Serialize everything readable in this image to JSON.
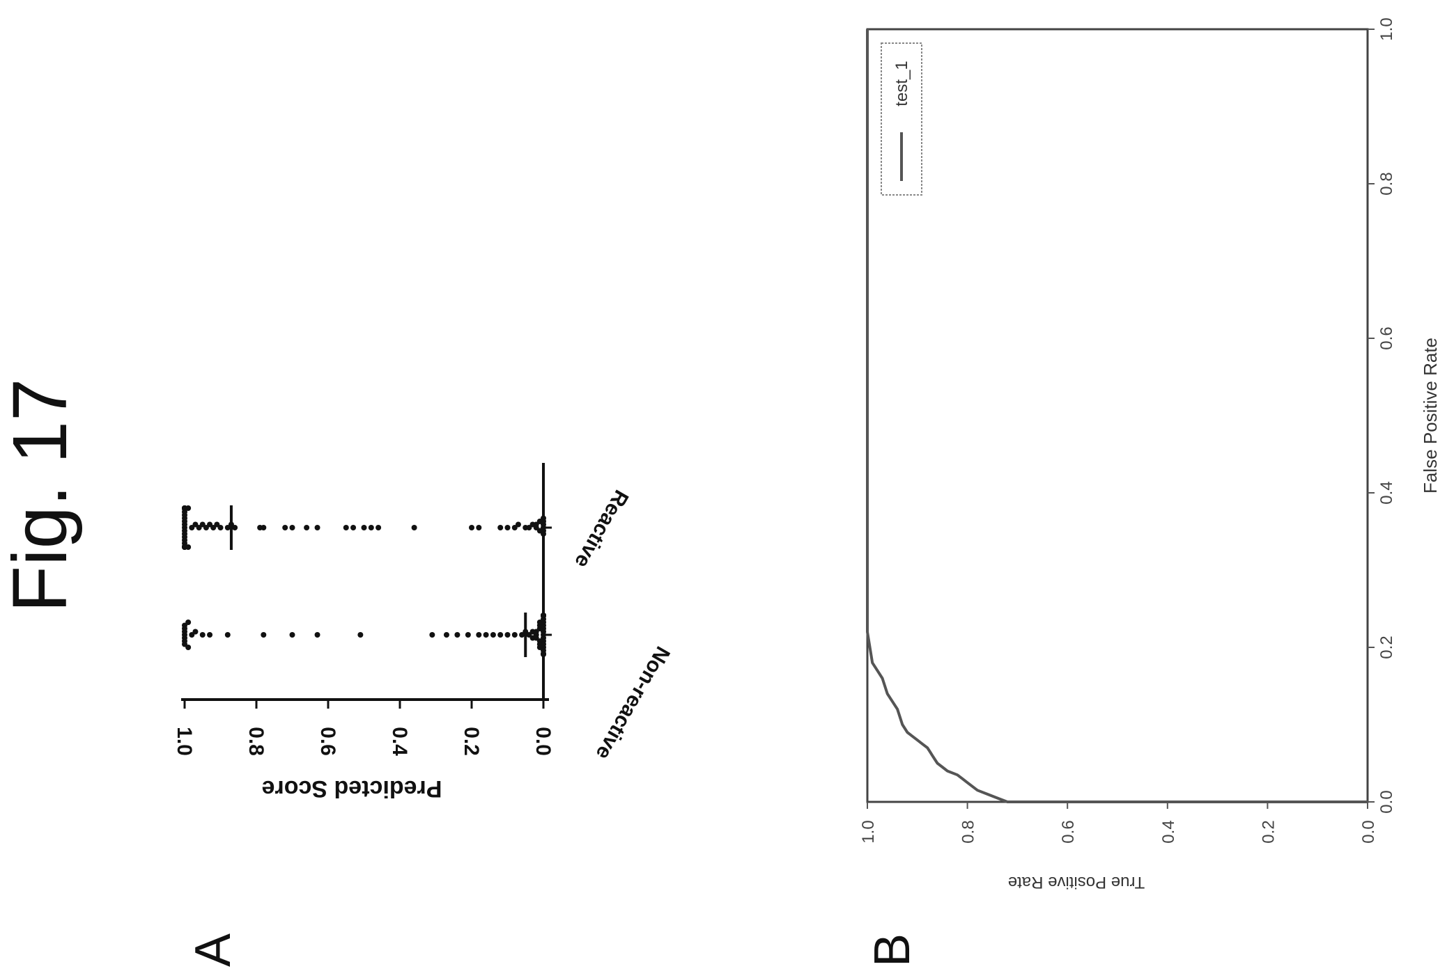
{
  "figure": {
    "title": "Fig. 17",
    "orientation": "rotated 90° counter-clockwise"
  },
  "chart_data": [
    {
      "panel": "A",
      "type": "scatter",
      "title": "",
      "xlabel": "",
      "ylabel": "Predicted Score",
      "ylim": [
        0.0,
        1.0
      ],
      "yticks": [
        "0.0",
        "0.2",
        "0.4",
        "0.6",
        "0.8",
        "1.0"
      ],
      "categories": [
        "Non-reactive",
        "Reactive"
      ],
      "series": [
        {
          "category": "Non-reactive",
          "values": [
            1.0,
            1.0,
            1.0,
            1.0,
            1.0,
            1.0,
            1.0,
            0.99,
            0.99,
            0.98,
            0.97,
            0.95,
            0.93,
            0.88,
            0.78,
            0.7,
            0.63,
            0.51,
            0.31,
            0.27,
            0.24,
            0.21,
            0.18,
            0.16,
            0.14,
            0.12,
            0.1,
            0.08,
            0.06,
            0.05,
            0.04,
            0.03,
            0.03,
            0.02,
            0.02,
            0.02,
            0.01,
            0.01,
            0.01,
            0.01,
            0.01,
            0.01,
            0.0,
            0.0,
            0.0,
            0.0,
            0.0,
            0.0,
            0.0,
            0.0,
            0.0,
            0.0,
            0.0,
            0.0,
            0.0,
            0.0,
            0.0,
            0.0,
            0.0,
            0.0
          ]
        },
        {
          "category": "Reactive",
          "values": [
            1.0,
            1.0,
            1.0,
            1.0,
            1.0,
            1.0,
            1.0,
            1.0,
            1.0,
            1.0,
            1.0,
            1.0,
            1.0,
            1.0,
            1.0,
            1.0,
            1.0,
            1.0,
            1.0,
            1.0,
            0.99,
            0.99,
            0.98,
            0.97,
            0.96,
            0.95,
            0.94,
            0.93,
            0.92,
            0.91,
            0.9,
            0.88,
            0.87,
            0.86,
            0.79,
            0.78,
            0.72,
            0.7,
            0.66,
            0.63,
            0.55,
            0.53,
            0.5,
            0.48,
            0.46,
            0.36,
            0.2,
            0.18,
            0.12,
            0.1,
            0.08,
            0.07,
            0.05,
            0.04,
            0.03,
            0.02,
            0.02,
            0.01,
            0.01,
            0.0,
            0.0,
            0.0,
            0.0,
            0.0,
            0.0
          ]
        }
      ]
    },
    {
      "panel": "B",
      "type": "line",
      "title": "",
      "xlabel": "False Positive Rate",
      "ylabel": "True Positive Rate",
      "xlim": [
        0.0,
        1.0
      ],
      "ylim": [
        0.0,
        1.0
      ],
      "xticks": [
        "0.0",
        "0.2",
        "0.4",
        "0.6",
        "0.8",
        "1.0"
      ],
      "yticks": [
        "0.0",
        "0.2",
        "0.4",
        "0.6",
        "0.8",
        "1.0"
      ],
      "legend_position": "top-right",
      "series": [
        {
          "name": "test_1",
          "x": [
            0.0,
            0.0,
            0.005,
            0.01,
            0.015,
            0.02,
            0.025,
            0.03,
            0.035,
            0.04,
            0.045,
            0.05,
            0.055,
            0.06,
            0.065,
            0.07,
            0.075,
            0.08,
            0.085,
            0.09,
            0.1,
            0.11,
            0.12,
            0.13,
            0.14,
            0.15,
            0.16,
            0.17,
            0.18,
            0.2,
            0.22,
            0.25,
            0.3,
            0.4,
            0.5,
            0.6,
            0.7,
            0.8,
            0.9,
            1.0
          ],
          "y": [
            0.0,
            0.72,
            0.74,
            0.76,
            0.78,
            0.79,
            0.8,
            0.81,
            0.82,
            0.84,
            0.85,
            0.86,
            0.865,
            0.87,
            0.875,
            0.88,
            0.89,
            0.9,
            0.91,
            0.92,
            0.93,
            0.935,
            0.94,
            0.95,
            0.96,
            0.965,
            0.97,
            0.98,
            0.99,
            0.995,
            1.0,
            1.0,
            1.0,
            1.0,
            1.0,
            1.0,
            1.0,
            1.0,
            1.0,
            1.0
          ],
          "color": "#555555"
        }
      ]
    }
  ]
}
